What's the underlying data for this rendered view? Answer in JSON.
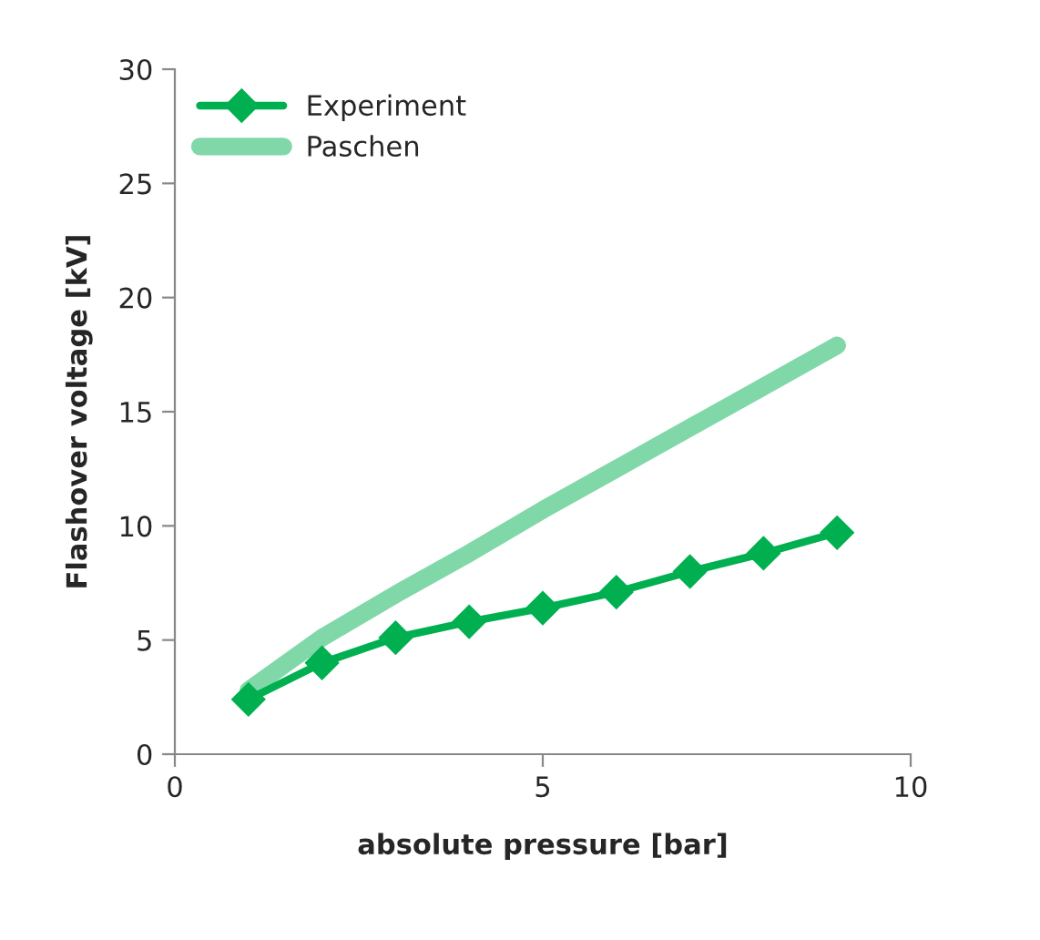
{
  "chart_data": {
    "type": "line",
    "xlabel": "absolute pressure [bar]",
    "ylabel": "Flashover voltage [kV]",
    "x": [
      1,
      2,
      3,
      4,
      5,
      6,
      7,
      8,
      9
    ],
    "series": [
      {
        "name": "Experiment",
        "color": "#00b050",
        "marker": "diamond",
        "values": [
          2.4,
          4.0,
          5.1,
          5.8,
          6.4,
          7.1,
          8.0,
          8.8,
          9.7
        ]
      },
      {
        "name": "Paschen",
        "color": "#80d8a8",
        "marker": "none",
        "values": [
          2.8,
          5.1,
          7.0,
          8.8,
          10.7,
          12.5,
          14.3,
          16.1,
          17.9
        ]
      }
    ],
    "xlim": [
      0,
      10
    ],
    "xticks": [
      0,
      5,
      10
    ],
    "ylim": [
      0,
      30
    ],
    "yticks": [
      0,
      5,
      10,
      15,
      20,
      25,
      30
    ],
    "grid": false,
    "legend": "top left"
  }
}
